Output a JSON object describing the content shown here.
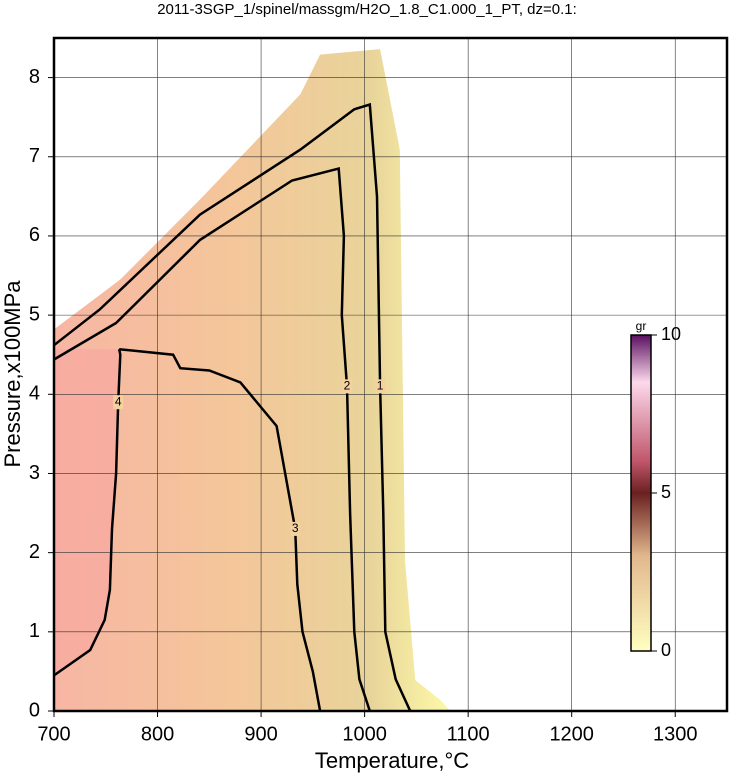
{
  "chart_data": {
    "type": "contour",
    "title": "2011-3SGP_1/spinel/massgm/H2O_1.8_C1.000_1_PT, dz=0.1:",
    "x_label": "Temperature,°C",
    "y_label": "Pressure,x100MPa",
    "xlim": [
      700,
      1350
    ],
    "ylim": [
      0,
      8.5
    ],
    "xticks": [
      700,
      800,
      900,
      1000,
      1100,
      1200,
      1300
    ],
    "yticks": [
      0,
      1,
      2,
      3,
      4,
      5,
      6,
      7,
      8
    ],
    "grid": true,
    "field_outline": {
      "x": [
        700,
        700,
        764,
        841,
        938,
        957,
        1015,
        1034,
        1039,
        1049,
        1073,
        1083
      ],
      "y": [
        0,
        4.82,
        5.45,
        6.46,
        7.79,
        8.29,
        8.36,
        7.09,
        1.9,
        0.39,
        0.14,
        0
      ]
    },
    "contours": [
      {
        "level": 1,
        "x": [
          700,
          744,
          841,
          938,
          990,
          1005,
          1012,
          1015,
          1018,
          1020,
          1030,
          1044
        ],
        "y": [
          4.62,
          5.07,
          6.27,
          7.09,
          7.6,
          7.66,
          6.5,
          4.1,
          2.5,
          1.0,
          0.4,
          0
        ]
      },
      {
        "level": 2,
        "x": [
          700,
          760,
          841,
          930,
          975,
          980,
          978,
          983,
          986,
          990,
          995,
          1005
        ],
        "y": [
          4.44,
          4.9,
          5.95,
          6.7,
          6.85,
          6.0,
          5.0,
          4.1,
          2.5,
          1.0,
          0.4,
          0
        ]
      },
      {
        "level": 3,
        "x": [
          763,
          815,
          822,
          850,
          880,
          915,
          933,
          935,
          940,
          950,
          957
        ],
        "y": [
          4.57,
          4.5,
          4.33,
          4.3,
          4.15,
          3.6,
          2.3,
          1.6,
          1.0,
          0.5,
          0
        ]
      },
      {
        "level": 4,
        "x": [
          700,
          735,
          749,
          754,
          756,
          760,
          762,
          764,
          763
        ],
        "y": [
          0.45,
          0.77,
          1.15,
          1.53,
          2.3,
          3.0,
          3.9,
          4.5,
          4.57
        ]
      }
    ],
    "colorbar": {
      "label": "gr",
      "lim": [
        0,
        10
      ],
      "ticks": [
        0,
        5,
        10
      ]
    }
  }
}
